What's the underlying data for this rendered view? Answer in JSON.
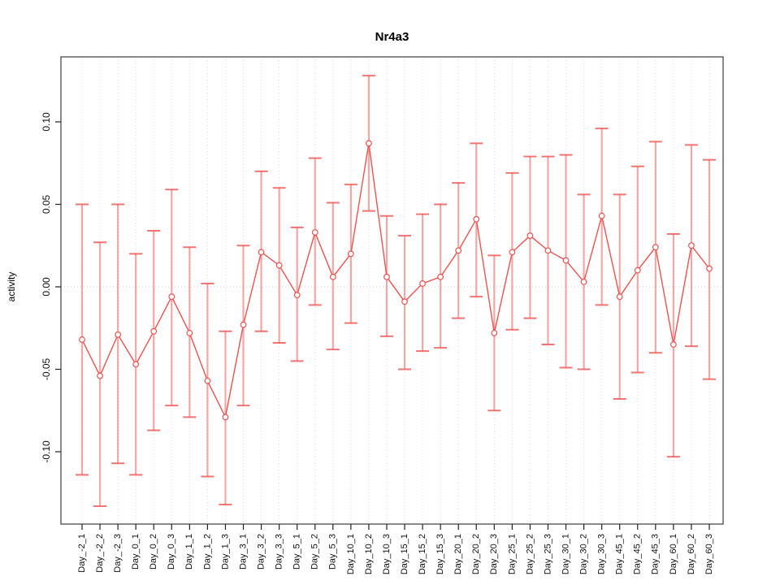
{
  "title": "Nr4a3",
  "chart_data": {
    "type": "line",
    "title": "Nr4a3",
    "xlabel": "",
    "ylabel": "activity",
    "ylim": [
      -0.144,
      0.139
    ],
    "yticks": [
      0.1,
      0.05,
      0.0,
      -0.05,
      -0.1
    ],
    "ytick_labels": [
      "0.10",
      "0.05",
      "0.00",
      "-0.05",
      "-0.10"
    ],
    "grid": "vertical dotted gridline at every category; dotted horizontal line at y=0; full box around plot; no legend",
    "point_style": "open circles connected by line segments, with mean±SD error bars capped top and bottom",
    "categories": [
      "Day_-2_1",
      "Day_-2_2",
      "Day_-2_3",
      "Day_0_1",
      "Day_0_2",
      "Day_0_3",
      "Day_1_1",
      "Day_1_2",
      "Day_1_3",
      "Day_3_1",
      "Day_3_2",
      "Day_3_3",
      "Day_5_1",
      "Day_5_2",
      "Day_5_3",
      "Day_10_1",
      "Day_10_2",
      "Day_10_3",
      "Day_15_1",
      "Day_15_2",
      "Day_15_3",
      "Day_20_1",
      "Day_20_2",
      "Day_20_3",
      "Day_25_1",
      "Day_25_2",
      "Day_25_3",
      "Day_30_1",
      "Day_30_2",
      "Day_30_3",
      "Day_45_1",
      "Day_45_2",
      "Day_45_3",
      "Day_60_1",
      "Day_60_2",
      "Day_60_3"
    ],
    "series": [
      {
        "name": "activity",
        "values": [
          -0.032,
          -0.054,
          -0.029,
          -0.047,
          -0.027,
          -0.006,
          -0.028,
          -0.057,
          -0.079,
          -0.023,
          0.021,
          0.013,
          -0.005,
          0.033,
          0.006,
          0.02,
          0.087,
          0.006,
          -0.009,
          0.002,
          0.006,
          0.022,
          0.041,
          -0.028,
          0.021,
          0.031,
          0.022,
          0.016,
          0.003,
          0.043,
          -0.006,
          0.01,
          0.024,
          -0.035,
          0.025,
          0.011
        ],
        "error_high": [
          0.05,
          0.027,
          0.05,
          0.02,
          0.034,
          0.059,
          0.024,
          0.002,
          -0.027,
          0.025,
          0.07,
          0.06,
          0.036,
          0.078,
          0.051,
          0.062,
          0.128,
          0.043,
          0.031,
          0.044,
          0.05,
          0.063,
          0.087,
          0.019,
          0.069,
          0.079,
          0.079,
          0.08,
          0.056,
          0.096,
          0.056,
          0.073,
          0.088,
          0.032,
          0.086,
          0.077
        ],
        "error_low": [
          -0.114,
          -0.133,
          -0.107,
          -0.114,
          -0.087,
          -0.072,
          -0.079,
          -0.115,
          -0.132,
          -0.072,
          -0.027,
          -0.034,
          -0.045,
          -0.011,
          -0.038,
          -0.022,
          0.046,
          -0.03,
          -0.05,
          -0.039,
          -0.037,
          -0.019,
          -0.006,
          -0.075,
          -0.026,
          -0.019,
          -0.035,
          -0.049,
          -0.05,
          -0.011,
          -0.068,
          -0.052,
          -0.04,
          -0.103,
          -0.036,
          -0.056
        ]
      }
    ]
  },
  "colors": {
    "series_red": "#ef5350",
    "error_bar": "rgba(239,83,80,0.5)",
    "error_cap": "rgba(239,83,80,0.8)",
    "gridline": "#dcdcdc",
    "zero_line": "#cfcfcf",
    "box_border": "#4a4a4a",
    "tick": "#222222",
    "text": "#111111",
    "background": "#ffffff"
  }
}
